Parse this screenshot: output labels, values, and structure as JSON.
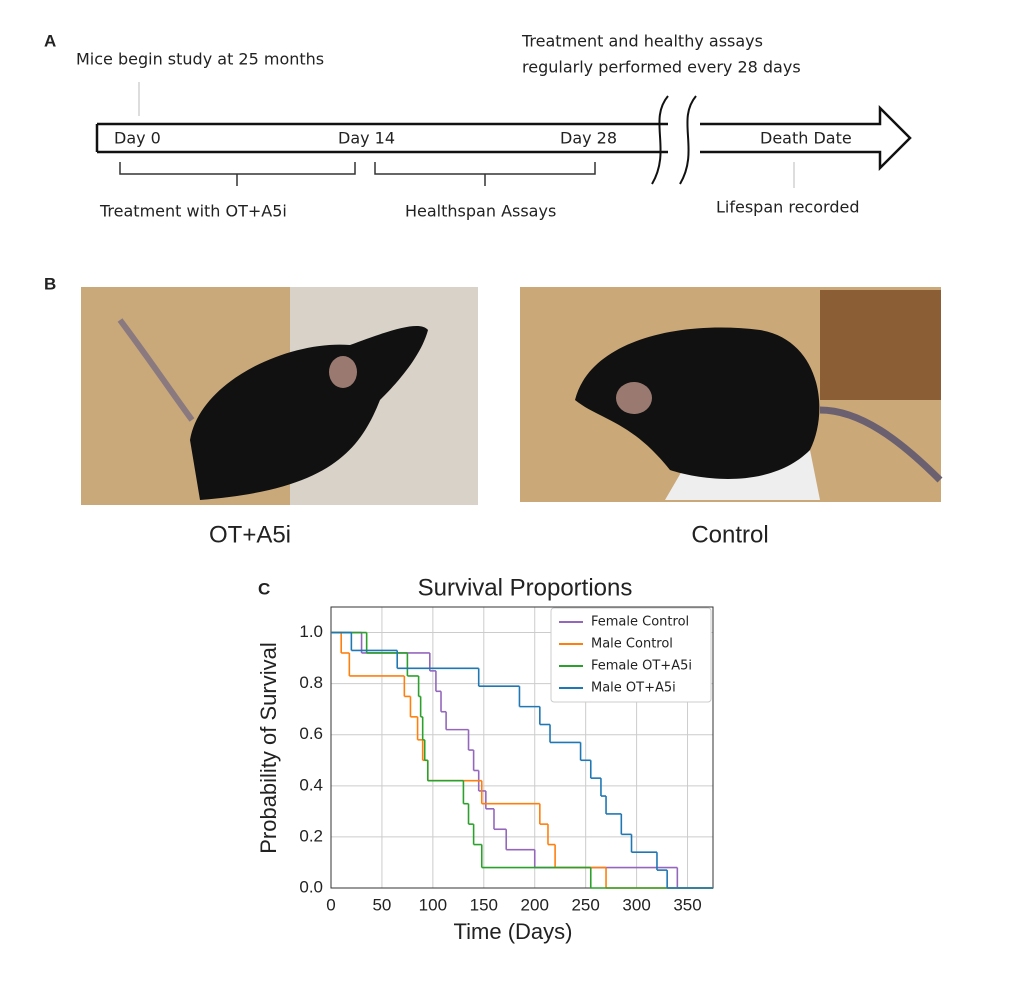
{
  "panel_a": {
    "label": "A",
    "start_note": "Mice begin study at 25 months",
    "repeat_note": [
      "Treatment and healthy assays",
      "regularly performed every 28 days"
    ],
    "day_0": "Day 0",
    "day_14": "Day 14",
    "day_28": "Day 28",
    "death_date": "Death Date",
    "treatment": "Treatment with OT+A5i",
    "healthspan": "Healthspan Assays",
    "lifespan": "Lifespan recorded"
  },
  "panel_b": {
    "label": "B",
    "left_caption": "OT+A5i",
    "right_caption": "Control"
  },
  "chart_data": {
    "type": "step",
    "label": "C",
    "title": "Survival Proportions",
    "x_label": "Time (Days)",
    "y_label": "Probability of Survival",
    "xlim": [
      0,
      375
    ],
    "ylim": [
      0,
      1.1
    ],
    "xticks": [
      0,
      50,
      100,
      150,
      200,
      250,
      300,
      350
    ],
    "yticks": [
      {
        "value": 0,
        "label": "0.0"
      },
      0.2,
      0.4,
      0.6,
      0.8,
      {
        "value": 1,
        "label": "1.0"
      }
    ],
    "grid": true,
    "legend": "upper right",
    "series": [
      {
        "name": "Female Control",
        "color": "#9467bd",
        "x": [
          0,
          30,
          97,
          103,
          108,
          113,
          135,
          140,
          145,
          152,
          160,
          172,
          200,
          340
        ],
        "values": [
          1.0,
          0.92,
          0.85,
          0.77,
          0.69,
          0.62,
          0.54,
          0.46,
          0.38,
          0.31,
          0.23,
          0.15,
          0.08,
          0.0
        ]
      },
      {
        "name": "Male Control",
        "color": "#ff7f0e",
        "x": [
          0,
          10,
          18,
          72,
          78,
          85,
          90,
          95,
          148,
          205,
          213,
          220,
          270
        ],
        "values": [
          1.0,
          0.92,
          0.83,
          0.75,
          0.67,
          0.58,
          0.5,
          0.42,
          0.33,
          0.25,
          0.17,
          0.08,
          0.0
        ]
      },
      {
        "name": "Female OT+A5i",
        "color": "#2ca02c",
        "x": [
          0,
          35,
          75,
          86,
          88,
          90,
          92,
          95,
          130,
          135,
          140,
          148,
          255
        ],
        "values": [
          1.0,
          0.92,
          0.83,
          0.75,
          0.67,
          0.58,
          0.5,
          0.42,
          0.33,
          0.25,
          0.17,
          0.08,
          0.0
        ]
      },
      {
        "name": "Male OT+A5i",
        "color": "#1f77b4",
        "x": [
          0,
          20,
          65,
          145,
          185,
          205,
          215,
          245,
          255,
          265,
          270,
          285,
          295,
          320,
          330
        ],
        "values": [
          1.0,
          0.93,
          0.86,
          0.79,
          0.71,
          0.64,
          0.57,
          0.5,
          0.43,
          0.36,
          0.29,
          0.21,
          0.14,
          0.07,
          0.0
        ]
      }
    ]
  }
}
